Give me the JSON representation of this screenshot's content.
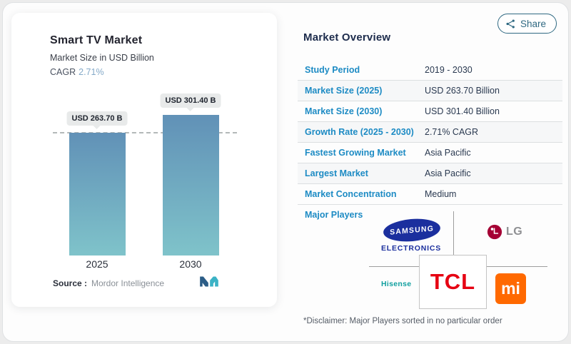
{
  "page": {
    "share_label": "Share"
  },
  "chart_panel": {
    "title": "Smart TV Market",
    "subtitle": "Market Size in USD Billion",
    "cagr_label": "CAGR",
    "cagr_value": "2.71%",
    "bar_labels": [
      "USD 263.70 B",
      "USD 301.40 B"
    ],
    "x_labels": [
      "2025",
      "2030"
    ],
    "source_label": "Source :",
    "source_value": "Mordor Intelligence"
  },
  "chart_data": {
    "type": "bar",
    "categories": [
      "2025",
      "2030"
    ],
    "values": [
      263.7,
      301.4
    ],
    "title": "Smart TV Market",
    "xlabel": "",
    "ylabel": "Market Size in USD Billion",
    "ylim": [
      0,
      550
    ],
    "grid": false,
    "annotations": [
      "USD 263.70 B",
      "USD 301.40 B",
      "dashed guideline at 2025 value"
    ]
  },
  "overview": {
    "title": "Market Overview",
    "rows": [
      {
        "label": "Study Period",
        "value": "2019 - 2030"
      },
      {
        "label": "Market Size (2025)",
        "value": "USD 263.70 Billion"
      },
      {
        "label": "Market Size (2030)",
        "value": "USD 301.40 Billion"
      },
      {
        "label": "Growth Rate (2025 - 2030)",
        "value": "2.71% CAGR"
      },
      {
        "label": "Fastest Growing Market",
        "value": "Asia Pacific"
      },
      {
        "label": "Largest Market",
        "value": "Asia Pacific"
      },
      {
        "label": "Market Concentration",
        "value": "Medium"
      }
    ],
    "major_players_label": "Major Players",
    "disclaimer": "*Disclaimer: Major Players sorted in no particular order"
  },
  "players": {
    "samsung_line1": "SAMSUNG",
    "samsung_line2": "ELECTRONICS",
    "lg": "LG",
    "hisense": "Hisense",
    "tcl": "TCL",
    "mi": "mi"
  },
  "colors": {
    "accent-blue": "#1d8bc4",
    "accent-soft": "#84a9c8",
    "bar-top": "#6191b7",
    "bar-bottom": "#7fc3ca",
    "pill-bg": "#e8eaea",
    "share-teal": "#2f6982",
    "samsung-blue": "#1b2f9e",
    "lg-magenta": "#a50034",
    "tcl-red": "#e60012",
    "mi-orange": "#ff6900",
    "hisense-teal": "#12a0a0"
  }
}
